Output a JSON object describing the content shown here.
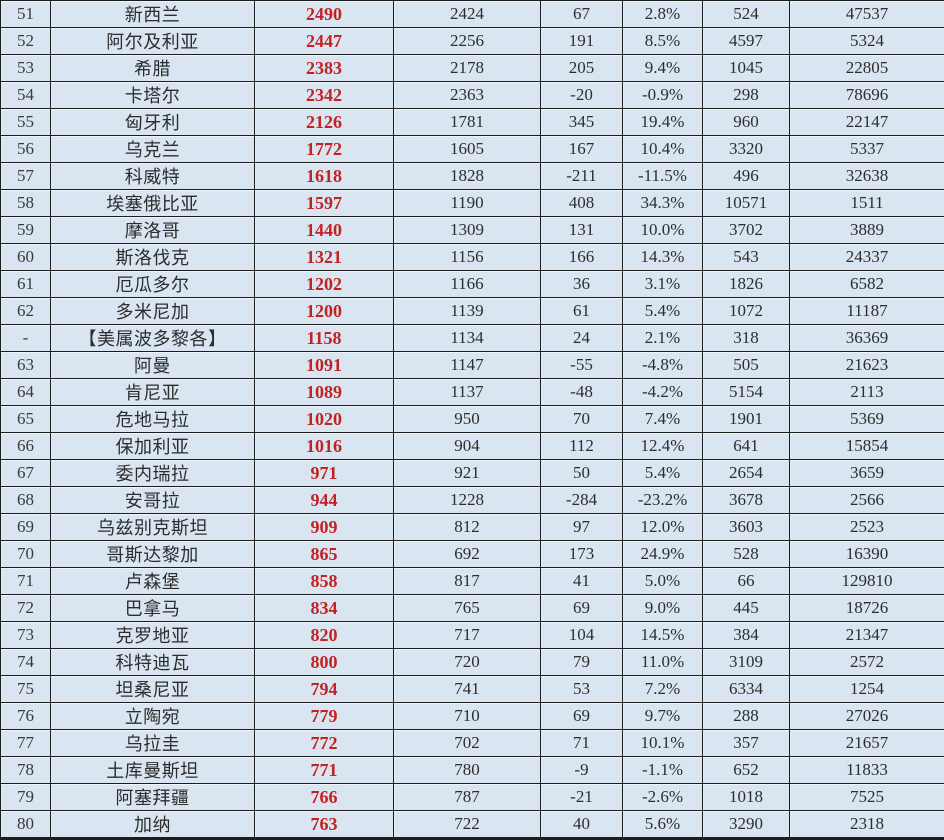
{
  "styles": {
    "cell_bg": "#d9e5f1",
    "border_color": "#1c1c1c",
    "text_color": "#2d2d2d",
    "highlight_value_color": "#c32222"
  },
  "chart_data": {
    "type": "table",
    "note_visible_headers": "none (header row cropped out of view)",
    "column_roles": [
      "rank",
      "country-name-cn",
      "value-current-red",
      "value-previous",
      "change-amount",
      "change-percent",
      "value-a",
      "value-b"
    ],
    "rows": [
      [
        "51",
        "新西兰",
        "2490",
        "2424",
        "67",
        "2.8%",
        "524",
        "47537"
      ],
      [
        "52",
        "阿尔及利亚",
        "2447",
        "2256",
        "191",
        "8.5%",
        "4597",
        "5324"
      ],
      [
        "53",
        "希腊",
        "2383",
        "2178",
        "205",
        "9.4%",
        "1045",
        "22805"
      ],
      [
        "54",
        "卡塔尔",
        "2342",
        "2363",
        "-20",
        "-0.9%",
        "298",
        "78696"
      ],
      [
        "55",
        "匈牙利",
        "2126",
        "1781",
        "345",
        "19.4%",
        "960",
        "22147"
      ],
      [
        "56",
        "乌克兰",
        "1772",
        "1605",
        "167",
        "10.4%",
        "3320",
        "5337"
      ],
      [
        "57",
        "科威特",
        "1618",
        "1828",
        "-211",
        "-11.5%",
        "496",
        "32638"
      ],
      [
        "58",
        "埃塞俄比亚",
        "1597",
        "1190",
        "408",
        "34.3%",
        "10571",
        "1511"
      ],
      [
        "59",
        "摩洛哥",
        "1440",
        "1309",
        "131",
        "10.0%",
        "3702",
        "3889"
      ],
      [
        "60",
        "斯洛伐克",
        "1321",
        "1156",
        "166",
        "14.3%",
        "543",
        "24337"
      ],
      [
        "61",
        "厄瓜多尔",
        "1202",
        "1166",
        "36",
        "3.1%",
        "1826",
        "6582"
      ],
      [
        "62",
        "多米尼加",
        "1200",
        "1139",
        "61",
        "5.4%",
        "1072",
        "11187"
      ],
      [
        "-",
        "【美属波多黎各】",
        "1158",
        "1134",
        "24",
        "2.1%",
        "318",
        "36369"
      ],
      [
        "63",
        "阿曼",
        "1091",
        "1147",
        "-55",
        "-4.8%",
        "505",
        "21623"
      ],
      [
        "64",
        "肯尼亚",
        "1089",
        "1137",
        "-48",
        "-4.2%",
        "5154",
        "2113"
      ],
      [
        "65",
        "危地马拉",
        "1020",
        "950",
        "70",
        "7.4%",
        "1901",
        "5369"
      ],
      [
        "66",
        "保加利亚",
        "1016",
        "904",
        "112",
        "12.4%",
        "641",
        "15854"
      ],
      [
        "67",
        "委内瑞拉",
        "971",
        "921",
        "50",
        "5.4%",
        "2654",
        "3659"
      ],
      [
        "68",
        "安哥拉",
        "944",
        "1228",
        "-284",
        "-23.2%",
        "3678",
        "2566"
      ],
      [
        "69",
        "乌兹别克斯坦",
        "909",
        "812",
        "97",
        "12.0%",
        "3603",
        "2523"
      ],
      [
        "70",
        "哥斯达黎加",
        "865",
        "692",
        "173",
        "24.9%",
        "528",
        "16390"
      ],
      [
        "71",
        "卢森堡",
        "858",
        "817",
        "41",
        "5.0%",
        "66",
        "129810"
      ],
      [
        "72",
        "巴拿马",
        "834",
        "765",
        "69",
        "9.0%",
        "445",
        "18726"
      ],
      [
        "73",
        "克罗地亚",
        "820",
        "717",
        "104",
        "14.5%",
        "384",
        "21347"
      ],
      [
        "74",
        "科特迪瓦",
        "800",
        "720",
        "79",
        "11.0%",
        "3109",
        "2572"
      ],
      [
        "75",
        "坦桑尼亚",
        "794",
        "741",
        "53",
        "7.2%",
        "6334",
        "1254"
      ],
      [
        "76",
        "立陶宛",
        "779",
        "710",
        "69",
        "9.7%",
        "288",
        "27026"
      ],
      [
        "77",
        "乌拉圭",
        "772",
        "702",
        "71",
        "10.1%",
        "357",
        "21657"
      ],
      [
        "78",
        "土库曼斯坦",
        "771",
        "780",
        "-9",
        "-1.1%",
        "652",
        "11833"
      ],
      [
        "79",
        "阿塞拜疆",
        "766",
        "787",
        "-21",
        "-2.6%",
        "1018",
        "7525"
      ],
      [
        "80",
        "加纳",
        "763",
        "722",
        "40",
        "5.6%",
        "3290",
        "2318"
      ]
    ]
  }
}
